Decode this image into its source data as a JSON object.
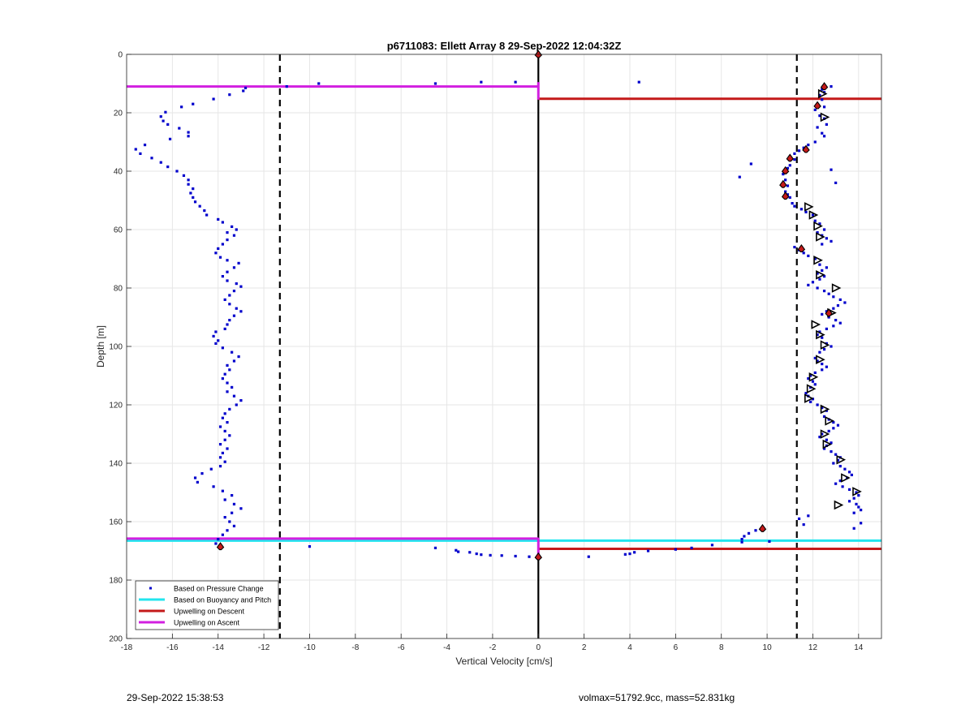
{
  "chart_data": {
    "type": "scatter",
    "title": "p6711083: Ellett Array 8 29-Sep-2022 12:04:32Z",
    "xlabel": "Vertical Velocity [cm/s]",
    "ylabel": "Depth [m]",
    "xlim": [
      -18,
      15
    ],
    "ylim": [
      0,
      200
    ],
    "y_reversed": true,
    "grid": true,
    "x_ticks": [
      "-18",
      "-16",
      "-14",
      "-12",
      "-10",
      "-8",
      "-6",
      "-4",
      "-2",
      "0",
      "2",
      "4",
      "6",
      "8",
      "10",
      "12",
      "14"
    ],
    "y_ticks": [
      "0",
      "20",
      "40",
      "60",
      "80",
      "100",
      "120",
      "140",
      "160",
      "180",
      "200"
    ],
    "legend": {
      "placement": "bottom-left",
      "entries": [
        {
          "label": "Based on Pressure Change",
          "color": "#0000cc",
          "style": "dot"
        },
        {
          "label": "Based on Buoyancy and Pitch",
          "color": "#22e5ee",
          "style": "line"
        },
        {
          "label": "Upwelling on Descent",
          "color": "#c41a1a",
          "style": "line"
        },
        {
          "label": "Upwelling on Ascent",
          "color": "#d21fe0",
          "style": "line"
        }
      ]
    },
    "reference_lines": {
      "solid_vertical_x": 0,
      "dashed_vertical_x": [
        -11.3,
        11.3
      ]
    },
    "upwelling_descent": [
      {
        "y": 15.2,
        "x_from": 0,
        "x_to": 15
      },
      {
        "y": 169.3,
        "x_from": 0,
        "x_to": 15
      }
    ],
    "upwelling_ascent": [
      {
        "y": 11,
        "x_from": -18,
        "x_to": 0
      },
      {
        "y": 165.8,
        "x_from": -18,
        "x_to": 0
      }
    ],
    "buoyancy_pitch": [
      {
        "y": 166.5,
        "x_from": -18,
        "x_to": 15
      }
    ],
    "pressure_change_descent": [
      [
        12.5,
        11
      ],
      [
        12.4,
        12
      ],
      [
        12.8,
        11
      ],
      [
        12.5,
        13
      ],
      [
        12.3,
        14
      ],
      [
        12.4,
        15.5
      ],
      [
        12.2,
        17
      ],
      [
        12.5,
        18
      ],
      [
        12.1,
        19
      ],
      [
        12.3,
        21
      ],
      [
        12.5,
        22
      ],
      [
        12.6,
        24
      ],
      [
        12.2,
        25
      ],
      [
        12.4,
        27
      ],
      [
        12.5,
        28
      ],
      [
        12.1,
        30
      ],
      [
        11.8,
        31
      ],
      [
        11.6,
        32
      ],
      [
        11.4,
        33
      ],
      [
        11.2,
        34
      ],
      [
        11.0,
        35
      ],
      [
        11.2,
        36
      ],
      [
        11.0,
        38
      ],
      [
        10.9,
        39
      ],
      [
        10.8,
        40
      ],
      [
        10.7,
        41
      ],
      [
        10.8,
        43
      ],
      [
        10.7,
        44
      ],
      [
        10.9,
        45
      ],
      [
        10.8,
        47
      ],
      [
        10.9,
        48
      ],
      [
        11.0,
        49
      ],
      [
        11.1,
        51
      ],
      [
        11.2,
        52
      ],
      [
        11.5,
        53
      ],
      [
        11.7,
        54
      ],
      [
        12.0,
        55
      ],
      [
        12.1,
        57
      ],
      [
        12.3,
        58
      ],
      [
        12.5,
        60
      ],
      [
        12.2,
        61
      ],
      [
        12.4,
        62
      ],
      [
        12.6,
        63
      ],
      [
        12.8,
        64
      ],
      [
        12.4,
        65
      ],
      [
        11.2,
        66
      ],
      [
        11.4,
        67
      ],
      [
        11.6,
        68
      ],
      [
        11.8,
        69
      ],
      [
        12.1,
        70
      ],
      [
        12.3,
        72
      ],
      [
        12.6,
        73
      ],
      [
        12.4,
        74
      ],
      [
        12.2,
        75
      ],
      [
        12.5,
        76
      ],
      [
        12.3,
        77
      ],
      [
        12.0,
        78
      ],
      [
        11.8,
        79
      ],
      [
        12.2,
        80
      ],
      [
        12.5,
        81
      ],
      [
        12.7,
        82
      ],
      [
        12.9,
        83
      ],
      [
        13.2,
        84
      ],
      [
        13.4,
        85
      ],
      [
        13.1,
        86
      ],
      [
        12.9,
        87
      ],
      [
        12.6,
        88
      ],
      [
        12.4,
        89
      ],
      [
        12.7,
        90
      ],
      [
        13.0,
        91
      ],
      [
        13.2,
        92
      ],
      [
        12.9,
        93
      ],
      [
        12.6,
        94
      ],
      [
        12.3,
        95
      ],
      [
        12.2,
        96
      ],
      [
        12.4,
        97
      ],
      [
        12.6,
        99
      ],
      [
        12.8,
        100
      ],
      [
        12.5,
        101
      ],
      [
        12.3,
        102
      ],
      [
        12.1,
        104
      ],
      [
        12.2,
        105
      ],
      [
        12.4,
        106
      ],
      [
        12.6,
        107
      ],
      [
        12.4,
        108
      ],
      [
        12.1,
        109
      ],
      [
        11.9,
        110
      ],
      [
        11.8,
        111
      ],
      [
        12.0,
        112
      ],
      [
        12.1,
        113
      ],
      [
        11.9,
        114
      ],
      [
        11.7,
        116
      ],
      [
        11.8,
        117
      ],
      [
        12.0,
        118
      ],
      [
        11.9,
        119
      ],
      [
        12.2,
        120
      ],
      [
        12.4,
        121
      ],
      [
        12.6,
        122
      ],
      [
        12.5,
        124
      ],
      [
        12.7,
        125
      ],
      [
        12.9,
        126
      ],
      [
        13.1,
        127
      ],
      [
        12.9,
        128
      ],
      [
        12.7,
        129
      ],
      [
        12.4,
        130
      ],
      [
        12.3,
        131
      ],
      [
        12.6,
        132
      ],
      [
        12.8,
        133
      ],
      [
        12.6,
        134
      ],
      [
        12.5,
        135
      ],
      [
        12.8,
        136
      ],
      [
        13.0,
        137
      ],
      [
        13.2,
        138
      ],
      [
        13.1,
        139
      ],
      [
        12.9,
        140
      ],
      [
        13.2,
        141
      ],
      [
        13.4,
        142
      ],
      [
        13.6,
        143
      ],
      [
        13.7,
        144
      ],
      [
        13.5,
        145
      ],
      [
        13.2,
        146
      ],
      [
        13.0,
        147
      ],
      [
        13.3,
        148
      ],
      [
        13.6,
        149
      ],
      [
        13.9,
        150
      ],
      [
        14.0,
        151
      ],
      [
        13.8,
        152
      ],
      [
        13.6,
        153
      ],
      [
        13.9,
        154
      ],
      [
        14.0,
        155
      ],
      [
        14.1,
        156
      ],
      [
        13.8,
        157
      ],
      [
        11.8,
        158
      ],
      [
        11.4,
        159
      ],
      [
        14.1,
        160.5
      ],
      [
        11.6,
        161
      ],
      [
        13.8,
        162.3
      ],
      [
        9.8,
        162
      ],
      [
        9.5,
        163
      ],
      [
        9.2,
        164
      ],
      [
        9.0,
        165
      ],
      [
        8.9,
        166
      ],
      [
        8.9,
        167
      ],
      [
        7.6,
        168
      ],
      [
        6.7,
        169
      ],
      [
        6.0,
        169.5
      ],
      [
        4.8,
        170
      ],
      [
        4.2,
        170.5
      ],
      [
        4.0,
        171
      ],
      [
        3.8,
        171.2
      ],
      [
        2.2,
        172
      ],
      [
        10.1,
        166.8
      ],
      [
        12.8,
        39.5
      ],
      [
        13.0,
        44
      ],
      [
        9.3,
        37.5
      ],
      [
        8.8,
        42
      ],
      [
        4.4,
        9.5
      ]
    ],
    "pressure_change_ascent": [
      [
        -12.8,
        11.5
      ],
      [
        -12.9,
        12.5
      ],
      [
        -13.5,
        13.8
      ],
      [
        -14.2,
        15.3
      ],
      [
        -15.1,
        17
      ],
      [
        -15.6,
        18
      ],
      [
        -16.3,
        19.8
      ],
      [
        -16.5,
        21.3
      ],
      [
        -16.4,
        22.8
      ],
      [
        -16.2,
        24
      ],
      [
        -15.7,
        25.3
      ],
      [
        -15.3,
        26.7
      ],
      [
        -15.3,
        28
      ],
      [
        -16.1,
        29
      ],
      [
        -17.2,
        31
      ],
      [
        -17.6,
        32.5
      ],
      [
        -17.4,
        34
      ],
      [
        -16.9,
        35.5
      ],
      [
        -16.5,
        37
      ],
      [
        -16.2,
        38.5
      ],
      [
        -15.8,
        40
      ],
      [
        -15.5,
        41.5
      ],
      [
        -15.3,
        43
      ],
      [
        -15.3,
        44.5
      ],
      [
        -15.1,
        46
      ],
      [
        -15.2,
        47.5
      ],
      [
        -15.1,
        49
      ],
      [
        -15.0,
        50.5
      ],
      [
        -14.8,
        52
      ],
      [
        -14.6,
        53.5
      ],
      [
        -14.5,
        55
      ],
      [
        -14.0,
        56.5
      ],
      [
        -13.8,
        57.5
      ],
      [
        -13.4,
        59
      ],
      [
        -13.2,
        60
      ],
      [
        -13.6,
        61
      ],
      [
        -13.3,
        62
      ],
      [
        -13.6,
        63.5
      ],
      [
        -13.8,
        65
      ],
      [
        -14.0,
        66.5
      ],
      [
        -14.1,
        68
      ],
      [
        -13.9,
        69.5
      ],
      [
        -13.6,
        70.5
      ],
      [
        -13.1,
        71.5
      ],
      [
        -13.3,
        73
      ],
      [
        -13.6,
        74.5
      ],
      [
        -13.8,
        76
      ],
      [
        -13.6,
        77.5
      ],
      [
        -13.2,
        78.5
      ],
      [
        -13.0,
        79.5
      ],
      [
        -13.3,
        81
      ],
      [
        -13.5,
        82.5
      ],
      [
        -13.7,
        84
      ],
      [
        -13.5,
        85.5
      ],
      [
        -13.2,
        87
      ],
      [
        -13.0,
        88
      ],
      [
        -13.3,
        89.5
      ],
      [
        -13.5,
        91
      ],
      [
        -13.6,
        92.5
      ],
      [
        -13.7,
        94
      ],
      [
        -14.1,
        95
      ],
      [
        -14.2,
        96.5
      ],
      [
        -14.0,
        98
      ],
      [
        -14.1,
        99
      ],
      [
        -13.8,
        100.5
      ],
      [
        -13.4,
        102
      ],
      [
        -13.1,
        103.5
      ],
      [
        -13.3,
        105
      ],
      [
        -13.6,
        106.5
      ],
      [
        -13.5,
        108
      ],
      [
        -13.7,
        109.5
      ],
      [
        -13.8,
        111
      ],
      [
        -13.6,
        112.5
      ],
      [
        -13.4,
        114
      ],
      [
        -13.6,
        115.5
      ],
      [
        -13.3,
        117
      ],
      [
        -13.0,
        118.5
      ],
      [
        -13.2,
        120
      ],
      [
        -13.5,
        121.5
      ],
      [
        -13.7,
        123
      ],
      [
        -13.8,
        124.5
      ],
      [
        -13.6,
        126
      ],
      [
        -13.9,
        127.5
      ],
      [
        -13.7,
        129
      ],
      [
        -13.5,
        130.5
      ],
      [
        -13.7,
        132
      ],
      [
        -13.9,
        133.5
      ],
      [
        -13.6,
        135
      ],
      [
        -13.8,
        136.5
      ],
      [
        -13.9,
        138
      ],
      [
        -13.7,
        139.5
      ],
      [
        -13.9,
        141
      ],
      [
        -14.3,
        142
      ],
      [
        -14.7,
        143.5
      ],
      [
        -15.0,
        145
      ],
      [
        -14.9,
        146.5
      ],
      [
        -14.2,
        148
      ],
      [
        -13.8,
        149.5
      ],
      [
        -13.4,
        151
      ],
      [
        -13.7,
        152.5
      ],
      [
        -13.3,
        154
      ],
      [
        -13.0,
        155.5
      ],
      [
        -13.4,
        157
      ],
      [
        -13.7,
        158.5
      ],
      [
        -13.5,
        160
      ],
      [
        -13.3,
        161.5
      ],
      [
        -13.6,
        163
      ],
      [
        -13.8,
        164.5
      ],
      [
        -14.0,
        166
      ],
      [
        -14.1,
        167.5
      ],
      [
        -11.0,
        11
      ],
      [
        -9.6,
        10
      ],
      [
        -4.5,
        10
      ],
      [
        -2.5,
        9.5
      ],
      [
        -1.0,
        9.5
      ],
      [
        -10.0,
        168.5
      ],
      [
        -4.5,
        169
      ],
      [
        -3.6,
        169.8
      ],
      [
        -3.5,
        170.3
      ],
      [
        -3.0,
        170.5
      ],
      [
        -2.7,
        171
      ],
      [
        -2.5,
        171.3
      ],
      [
        -2.1,
        171.5
      ],
      [
        -1.6,
        171.6
      ],
      [
        -1.0,
        171.8
      ],
      [
        -0.4,
        172
      ]
    ],
    "markers_descent_red_stars": [
      [
        0,
        0
      ],
      [
        12.5,
        11
      ],
      [
        12.2,
        17.5
      ],
      [
        11.7,
        32.5
      ],
      [
        11.0,
        35.5
      ],
      [
        10.8,
        39.8
      ],
      [
        10.7,
        44.5
      ],
      [
        10.8,
        48.5
      ],
      [
        11.5,
        66.5
      ],
      [
        12.7,
        88.5
      ],
      [
        9.8,
        162.3
      ],
      [
        0,
        172
      ]
    ],
    "markers_ascent_red_stars": [
      [
        -13.9,
        168.5
      ]
    ],
    "markers_triangles": [
      [
        12.4,
        13.5
      ],
      [
        12.5,
        21.5
      ],
      [
        11.8,
        52.2
      ],
      [
        12.0,
        55
      ],
      [
        12.2,
        58.8
      ],
      [
        12.3,
        62.5
      ],
      [
        12.2,
        70.5
      ],
      [
        12.3,
        75.5
      ],
      [
        13.0,
        80
      ],
      [
        12.8,
        88.5
      ],
      [
        12.1,
        92.5
      ],
      [
        12.3,
        96
      ],
      [
        12.5,
        99.5
      ],
      [
        12.3,
        104.5
      ],
      [
        12.0,
        110.5
      ],
      [
        11.9,
        114.5
      ],
      [
        11.8,
        117.8
      ],
      [
        12.5,
        121.5
      ],
      [
        12.7,
        125.5
      ],
      [
        12.5,
        130
      ],
      [
        12.6,
        133.5
      ],
      [
        13.2,
        138.8
      ],
      [
        13.4,
        145
      ],
      [
        13.9,
        149.7
      ],
      [
        13.1,
        154.3
      ]
    ]
  },
  "footer": {
    "left_timestamp": "29-Sep-2022 15:38:53",
    "right_info": "volmax=51792.9cc, mass=52.831kg"
  }
}
